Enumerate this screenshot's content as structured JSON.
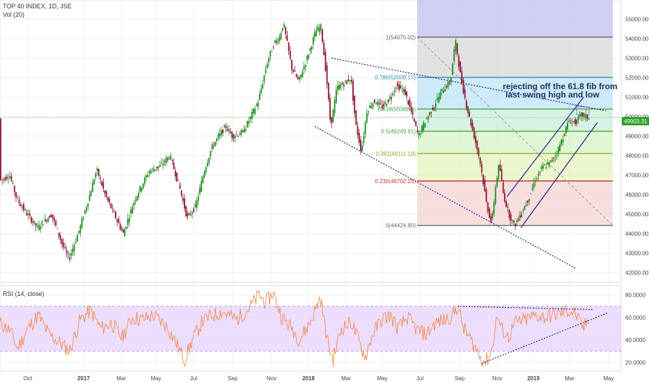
{
  "legend": {
    "symbol": "TOP 40 INDEX, 1D, JSE",
    "volume": "Vol (20)",
    "rsi": "RSI (14, close)"
  },
  "annotation": {
    "line1": "rejecting off the 61.8 fib from",
    "line2": "last swing high and low"
  },
  "price_tag": "49903.31",
  "colors": {
    "up": "#1b8a1b",
    "down": "#8b0f2c",
    "rsi_line": "#f08a4b",
    "rsi_band": "#e8d6ff",
    "trend_dotted": "#2a2aa0",
    "channel": "#2b2b8f",
    "price_line": "#7ed47e"
  },
  "chart_data": {
    "type": "candlestick",
    "x_axis_ticks": [
      "Oct",
      "2017",
      "Mar",
      "May",
      "Jul",
      "Sep",
      "Nov",
      "2018",
      "Mar",
      "May",
      "Jul",
      "Sep",
      "Nov",
      "2019",
      "Mar",
      "May"
    ],
    "price_axis": {
      "ticks": [
        "55000.00",
        "54000.00",
        "53000.00",
        "52000.00",
        "51000.00",
        "50000.00",
        "49000.00",
        "48000.00",
        "47000.00",
        "46000.00",
        "45000.00",
        "44000.00",
        "43000.00",
        "42000.00"
      ],
      "range": [
        41700,
        55800
      ]
    },
    "price_path": [
      [
        0,
        46700
      ],
      [
        15,
        47000
      ],
      [
        25,
        45800
      ],
      [
        40,
        45000
      ],
      [
        55,
        44300
      ],
      [
        75,
        45000
      ],
      [
        90,
        43500
      ],
      [
        100,
        42700
      ],
      [
        115,
        44200
      ],
      [
        130,
        46000
      ],
      [
        140,
        47300
      ],
      [
        152,
        46000
      ],
      [
        165,
        45000
      ],
      [
        178,
        44000
      ],
      [
        195,
        45800
      ],
      [
        215,
        47200
      ],
      [
        232,
        47500
      ],
      [
        245,
        48000
      ],
      [
        258,
        46500
      ],
      [
        270,
        44800
      ],
      [
        282,
        45400
      ],
      [
        295,
        47300
      ],
      [
        305,
        48400
      ],
      [
        315,
        49000
      ],
      [
        325,
        49500
      ],
      [
        335,
        49000
      ],
      [
        350,
        49200
      ],
      [
        360,
        49900
      ],
      [
        372,
        50800
      ],
      [
        385,
        52800
      ],
      [
        395,
        53800
      ],
      [
        402,
        54000
      ],
      [
        408,
        54800
      ],
      [
        420,
        52500
      ],
      [
        430,
        51800
      ],
      [
        442,
        53000
      ],
      [
        455,
        54400
      ],
      [
        462,
        54600
      ],
      [
        470,
        52000
      ],
      [
        476,
        49500
      ],
      [
        485,
        51500
      ],
      [
        495,
        51700
      ],
      [
        505,
        52000
      ],
      [
        512,
        49600
      ],
      [
        520,
        48200
      ],
      [
        528,
        50300
      ],
      [
        538,
        50800
      ],
      [
        550,
        50500
      ],
      [
        560,
        50900
      ],
      [
        570,
        51600
      ],
      [
        582,
        51300
      ],
      [
        592,
        50200
      ],
      [
        602,
        49000
      ],
      [
        612,
        49800
      ],
      [
        625,
        50600
      ],
      [
        637,
        51400
      ],
      [
        648,
        51800
      ],
      [
        655,
        53900
      ],
      [
        662,
        52200
      ],
      [
        670,
        50700
      ],
      [
        682,
        49000
      ],
      [
        690,
        47800
      ],
      [
        700,
        45500
      ],
      [
        707,
        44500
      ],
      [
        713,
        46500
      ],
      [
        718,
        47600
      ],
      [
        724,
        46000
      ],
      [
        732,
        45000
      ],
      [
        740,
        44400
      ],
      [
        750,
        45100
      ],
      [
        760,
        45800
      ],
      [
        770,
        46800
      ],
      [
        780,
        47400
      ],
      [
        790,
        47600
      ],
      [
        800,
        48100
      ],
      [
        810,
        49000
      ],
      [
        818,
        49800
      ],
      [
        828,
        49700
      ],
      [
        836,
        50100
      ],
      [
        842,
        50000
      ],
      [
        847,
        49900
      ]
    ],
    "volume_line": 49950,
    "fib_levels": [
      {
        "label": "1(54075.02)",
        "value": 54075.02
      },
      {
        "label": "0.786(52009.17)",
        "value": 52009.17
      },
      {
        "label": "0.618(50388.6)",
        "value": 50388.6
      },
      {
        "label": "0.5(49249.91)",
        "value": 49249.91
      },
      {
        "label": "0.382(48111.18)",
        "value": 48111.18
      },
      {
        "label": "0.236(46702.25)",
        "value": 46702.25
      },
      {
        "label": "0(44424.80)",
        "value": 44424.8
      }
    ],
    "rsi": {
      "ticks": [
        "80.0000",
        "60.0000",
        "40.0000",
        "20.0000"
      ],
      "range": [
        14,
        86
      ],
      "band": [
        30,
        70
      ],
      "path": [
        [
          0,
          55
        ],
        [
          15,
          48
        ],
        [
          25,
          32
        ],
        [
          40,
          50
        ],
        [
          55,
          62
        ],
        [
          70,
          45
        ],
        [
          85,
          38
        ],
        [
          100,
          30
        ],
        [
          115,
          58
        ],
        [
          130,
          66
        ],
        [
          145,
          50
        ],
        [
          160,
          55
        ],
        [
          175,
          42
        ],
        [
          190,
          60
        ],
        [
          205,
          58
        ],
        [
          220,
          62
        ],
        [
          240,
          52
        ],
        [
          255,
          35
        ],
        [
          265,
          22
        ],
        [
          275,
          38
        ],
        [
          290,
          56
        ],
        [
          305,
          62
        ],
        [
          320,
          65
        ],
        [
          340,
          58
        ],
        [
          360,
          70
        ],
        [
          372,
          80
        ],
        [
          382,
          73
        ],
        [
          392,
          82
        ],
        [
          405,
          60
        ],
        [
          420,
          50
        ],
        [
          430,
          40
        ],
        [
          445,
          55
        ],
        [
          460,
          78
        ],
        [
          470,
          40
        ],
        [
          478,
          22
        ],
        [
          490,
          50
        ],
        [
          505,
          56
        ],
        [
          518,
          34
        ],
        [
          525,
          25
        ],
        [
          535,
          45
        ],
        [
          548,
          58
        ],
        [
          560,
          62
        ],
        [
          572,
          50
        ],
        [
          585,
          60
        ],
        [
          600,
          48
        ],
        [
          612,
          45
        ],
        [
          625,
          55
        ],
        [
          640,
          58
        ],
        [
          650,
          62
        ],
        [
          657,
          70
        ],
        [
          666,
          50
        ],
        [
          678,
          38
        ],
        [
          690,
          25
        ],
        [
          697,
          20
        ],
        [
          706,
          30
        ],
        [
          714,
          62
        ],
        [
          720,
          50
        ],
        [
          730,
          42
        ],
        [
          740,
          55
        ],
        [
          755,
          58
        ],
        [
          770,
          62
        ],
        [
          785,
          60
        ],
        [
          800,
          63
        ],
        [
          815,
          66
        ],
        [
          826,
          64
        ],
        [
          832,
          55
        ],
        [
          838,
          50
        ],
        [
          847,
          62
        ]
      ]
    },
    "grid": true
  }
}
